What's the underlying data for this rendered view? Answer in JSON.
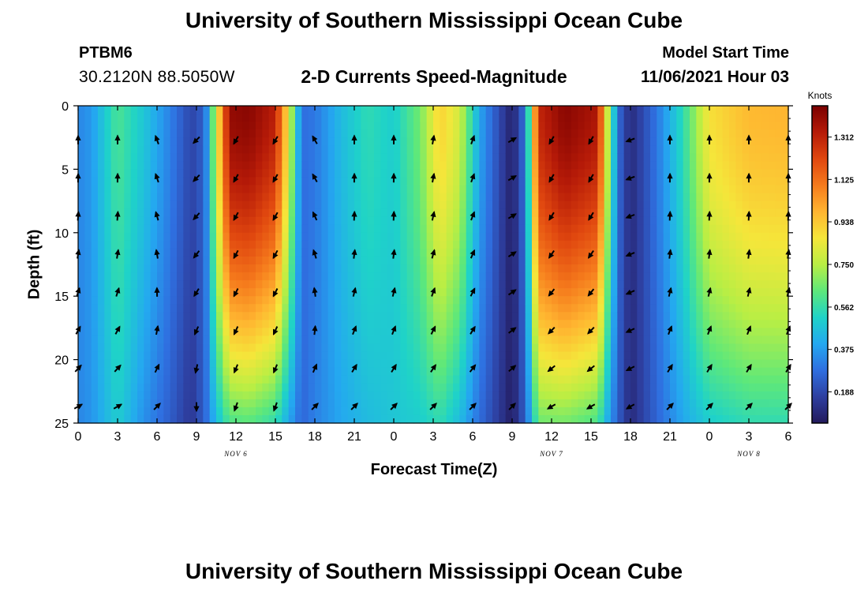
{
  "header": {
    "title": "University of Southern Mississippi Ocean Cube",
    "station_id": "PTBM6",
    "coordinates": "30.2120N  88.5050W",
    "subtitle": "2-D Currents Speed-Magnitude",
    "model_start_label": "Model Start Time",
    "model_start_value": "11/06/2021 Hour 03"
  },
  "footer": {
    "title": "University of Southern Mississippi Ocean Cube"
  },
  "chart_data": {
    "type": "heatmap",
    "title": "2-D Currents Speed-Magnitude",
    "xlabel": "Forecast Time(Z)",
    "ylabel": "Depth (ft)",
    "x_hours": [
      0,
      3,
      6,
      9,
      12,
      15,
      18,
      21,
      24,
      27,
      30,
      33,
      36,
      39,
      42,
      45,
      48,
      51,
      54
    ],
    "x_tick_labels": [
      "0",
      "3",
      "6",
      "9",
      "12",
      "15",
      "18",
      "21",
      "0",
      "3",
      "6",
      "9",
      "12",
      "15",
      "18",
      "21",
      "0",
      "3",
      "6"
    ],
    "date_labels": [
      {
        "hour": 12,
        "label": "NOV 6"
      },
      {
        "hour": 36,
        "label": "NOV 7"
      },
      {
        "hour": 51,
        "label": "NOV 8"
      }
    ],
    "xlim": [
      0,
      54
    ],
    "y_ticks": [
      0,
      5,
      10,
      15,
      20,
      25
    ],
    "y_tick_labels": [
      "0",
      "5",
      "10",
      "15",
      "20",
      "25"
    ],
    "ylim": [
      0,
      25
    ],
    "y_inverted": true,
    "colorbar": {
      "label": "Knots",
      "ticks": [
        0.188,
        0.375,
        0.562,
        0.75,
        0.938,
        1.125,
        1.312
      ],
      "tick_labels": [
        "0.188",
        "0.375",
        "0.562",
        "0.750",
        "0.938",
        "1.125",
        "1.312"
      ],
      "range": [
        0.05,
        1.45
      ],
      "colors": [
        "#231a5c",
        "#2e3fa0",
        "#2f6fe0",
        "#24a8f0",
        "#1fd3c8",
        "#5ee87a",
        "#b9ee44",
        "#f5e63a",
        "#ffb430",
        "#f57a1c",
        "#e0470f",
        "#b51a08",
        "#7a0000"
      ]
    },
    "speed_profile_knots": [
      {
        "hour": 0,
        "surface": 0.33,
        "bottom": 0.33
      },
      {
        "hour": 1,
        "surface": 0.37,
        "bottom": 0.36
      },
      {
        "hour": 3,
        "surface": 0.6,
        "bottom": 0.5
      },
      {
        "hour": 5,
        "surface": 0.48,
        "bottom": 0.35
      },
      {
        "hour": 7,
        "surface": 0.32,
        "bottom": 0.24
      },
      {
        "hour": 8.6,
        "surface": 0.18,
        "bottom": 0.14
      },
      {
        "hour": 9.6,
        "surface": 0.25,
        "bottom": 0.25
      },
      {
        "hour": 10.5,
        "surface": 0.8,
        "bottom": 0.45
      },
      {
        "hour": 11.5,
        "surface": 1.4,
        "bottom": 0.6
      },
      {
        "hour": 13,
        "surface": 1.42,
        "bottom": 0.62
      },
      {
        "hour": 15,
        "surface": 1.32,
        "bottom": 0.55
      },
      {
        "hour": 16,
        "surface": 0.85,
        "bottom": 0.4
      },
      {
        "hour": 17,
        "surface": 0.28,
        "bottom": 0.26
      },
      {
        "hour": 18,
        "surface": 0.3,
        "bottom": 0.32
      },
      {
        "hour": 20,
        "surface": 0.45,
        "bottom": 0.4
      },
      {
        "hour": 22,
        "surface": 0.55,
        "bottom": 0.45
      },
      {
        "hour": 24,
        "surface": 0.5,
        "bottom": 0.48
      },
      {
        "hour": 26,
        "surface": 0.66,
        "bottom": 0.5
      },
      {
        "hour": 27.5,
        "surface": 0.92,
        "bottom": 0.55
      },
      {
        "hour": 29,
        "surface": 0.8,
        "bottom": 0.45
      },
      {
        "hour": 30.5,
        "surface": 0.4,
        "bottom": 0.28
      },
      {
        "hour": 32,
        "surface": 0.2,
        "bottom": 0.15
      },
      {
        "hour": 33,
        "surface": 0.07,
        "bottom": 0.06
      },
      {
        "hour": 34,
        "surface": 0.3,
        "bottom": 0.25
      },
      {
        "hour": 35,
        "surface": 1.3,
        "bottom": 0.65
      },
      {
        "hour": 37,
        "surface": 1.42,
        "bottom": 0.66
      },
      {
        "hour": 39.5,
        "surface": 1.35,
        "bottom": 0.6
      },
      {
        "hour": 40.5,
        "surface": 0.6,
        "bottom": 0.35
      },
      {
        "hour": 41.2,
        "surface": 0.25,
        "bottom": 0.22
      },
      {
        "hour": 42,
        "surface": 0.1,
        "bottom": 0.1
      },
      {
        "hour": 44,
        "surface": 0.3,
        "bottom": 0.26
      },
      {
        "hour": 46,
        "surface": 0.55,
        "bottom": 0.4
      },
      {
        "hour": 48,
        "surface": 0.88,
        "bottom": 0.5
      },
      {
        "hour": 51,
        "surface": 0.97,
        "bottom": 0.55
      },
      {
        "hour": 54,
        "surface": 0.98,
        "bottom": 0.55
      }
    ],
    "current_vectors": {
      "hours": [
        0,
        3,
        6,
        9,
        12,
        15,
        18,
        21,
        24,
        27,
        30,
        33,
        36,
        39,
        42,
        45,
        48,
        51,
        54
      ],
      "depths_ft": [
        2.7,
        5.7,
        8.7,
        11.7,
        14.7,
        17.7,
        20.7,
        23.7
      ],
      "direction_deg_top": [
        0,
        0,
        -20,
        225,
        210,
        210,
        -30,
        0,
        0,
        10,
        20,
        60,
        210,
        210,
        250,
        0,
        0,
        0,
        0
      ],
      "direction_deg_bottom": [
        60,
        60,
        45,
        180,
        200,
        200,
        45,
        45,
        45,
        45,
        45,
        45,
        240,
        240,
        240,
        45,
        45,
        45,
        45
      ]
    }
  }
}
